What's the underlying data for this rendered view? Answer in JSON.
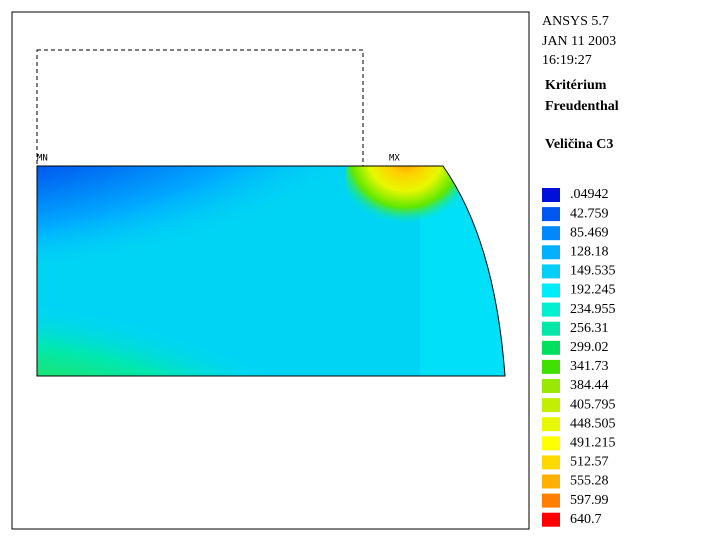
{
  "header": {
    "lines": [
      "ANSYS 5.7",
      "JAN 11 2003",
      "16:19:27"
    ]
  },
  "title": [
    "Kritérium",
    "Freudenthal"
  ],
  "quantity": "Veličina C3",
  "markers": {
    "min": "MN",
    "max": "MX"
  },
  "legend": [
    {
      "label": ".04942",
      "color": "#0010d8"
    },
    {
      "label": "42.759",
      "color": "#0058f0"
    },
    {
      "label": "85.469",
      "color": "#0088ff"
    },
    {
      "label": "128.18",
      "color": "#00b0ff"
    },
    {
      "label": "149.535",
      "color": "#00d0f8"
    },
    {
      "label": "192.245",
      "color": "#00ecf8"
    },
    {
      "label": "234.955",
      "color": "#00f0d0"
    },
    {
      "label": "256.31",
      "color": "#00e8a8"
    },
    {
      "label": "299.02",
      "color": "#00e060"
    },
    {
      "label": "341.73",
      "color": "#40e000"
    },
    {
      "label": "384.44",
      "color": "#98e800"
    },
    {
      "label": "405.795",
      "color": "#c0f000"
    },
    {
      "label": "448.505",
      "color": "#e8f800"
    },
    {
      "label": "491.215",
      "color": "#ffff00"
    },
    {
      "label": "512.57",
      "color": "#ffd800"
    },
    {
      "label": "555.28",
      "color": "#ffb000"
    },
    {
      "label": "597.99",
      "color": "#ff8000"
    },
    {
      "label": "640.7",
      "color": "#ff0000"
    }
  ]
}
